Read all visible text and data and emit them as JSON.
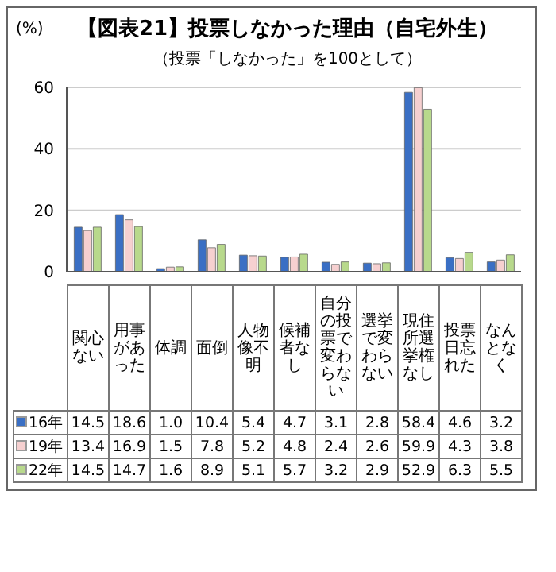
{
  "chart_data": {
    "type": "bar",
    "title": "【図表21】投票しなかった理由（自宅外生）",
    "subtitle": "（投票「しなかった」を100として）",
    "ylabel": "(%)",
    "categories": [
      "関心ない",
      "用事があった",
      "体調",
      "面倒",
      "人物像不明",
      "候補者なし",
      "自分の投票で変わらない",
      "選挙で変わらない",
      "現住所選挙権なし",
      "投票日忘れた",
      "なんとなく"
    ],
    "series": [
      {
        "name": "16年",
        "color": "#3a6fc4",
        "values": [
          14.5,
          18.6,
          1.0,
          10.4,
          5.4,
          4.7,
          3.1,
          2.8,
          58.4,
          4.6,
          3.2
        ],
        "value_labels": [
          "14.5",
          "18.6",
          "1.0",
          "10.4",
          "5.4",
          "4.7",
          "3.1",
          "2.8",
          "58.4",
          "4.6",
          "3.2"
        ]
      },
      {
        "name": "19年",
        "color": "#f6d0d0",
        "values": [
          13.4,
          16.9,
          1.5,
          7.8,
          5.2,
          4.8,
          2.4,
          2.6,
          59.9,
          4.3,
          3.8
        ],
        "value_labels": [
          "13.4",
          "16.9",
          "1.5",
          "7.8",
          "5.2",
          "4.8",
          "2.4",
          "2.6",
          "59.9",
          "4.3",
          "3.8"
        ]
      },
      {
        "name": "22年",
        "color": "#b8d98c",
        "values": [
          14.5,
          14.7,
          1.6,
          8.9,
          5.1,
          5.7,
          3.2,
          2.9,
          52.9,
          6.3,
          5.5
        ],
        "value_labels": [
          "14.5",
          "14.7",
          "1.6",
          "8.9",
          "5.1",
          "5.7",
          "3.2",
          "2.9",
          "52.9",
          "6.3",
          "5.5"
        ]
      }
    ],
    "ylim": [
      0,
      60
    ],
    "yticks": [
      0,
      20,
      40,
      60
    ],
    "grid": "y",
    "legend": "bottom left"
  }
}
